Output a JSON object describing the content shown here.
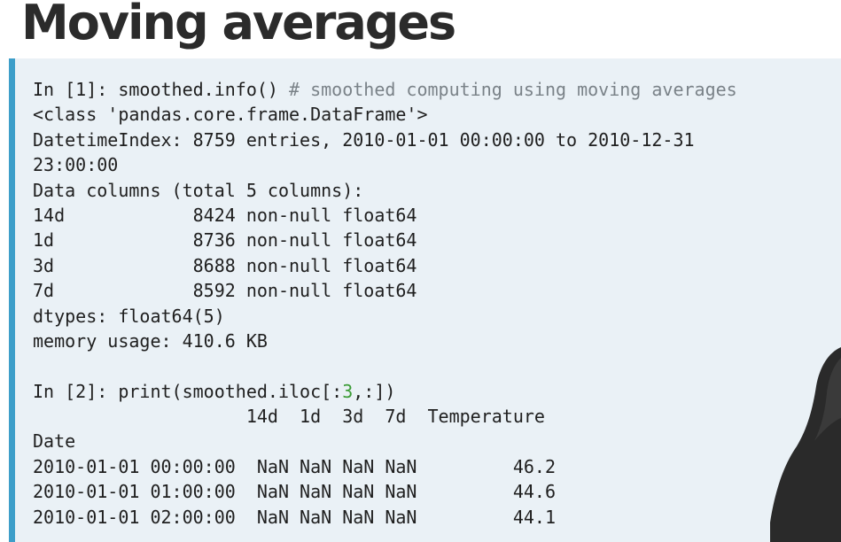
{
  "slide": {
    "title": "Moving averages"
  },
  "cell1": {
    "prompt": "In [1]: ",
    "code": "smoothed.info() ",
    "comment": "# smoothed computing using moving averages",
    "output": [
      "<class 'pandas.core.frame.DataFrame'>",
      "DatetimeIndex: 8759 entries, 2010-01-01 00:00:00 to 2010-12-31",
      "23:00:00",
      "Data columns (total 5 columns):",
      "14d            8424 non-null float64",
      "1d             8736 non-null float64",
      "3d             8688 non-null float64",
      "7d             8592 non-null float64",
      "dtypes: float64(5)",
      "memory usage: 410.6 KB"
    ]
  },
  "cell2": {
    "prompt": "In [2]: ",
    "code_before": "print(smoothed.iloc[:",
    "code_num": "3",
    "code_after": ",:])",
    "output": [
      "                    14d  1d  3d  7d  Temperature",
      "Date",
      "2010-01-01 00:00:00  NaN NaN NaN NaN         46.2",
      "2010-01-01 01:00:00  NaN NaN NaN NaN         44.6",
      "2010-01-01 02:00:00  NaN NaN NaN NaN         44.1"
    ]
  },
  "colors": {
    "accent": "#3d9ec9",
    "panel_bg": "#eaf1f6",
    "comment": "#7a8288",
    "number": "#3a9b35"
  }
}
